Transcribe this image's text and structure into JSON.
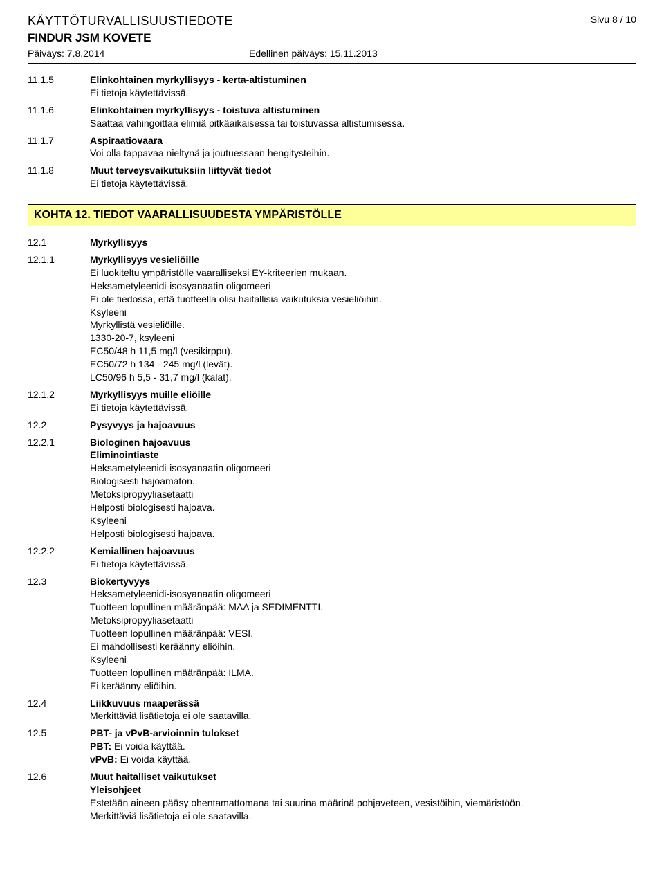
{
  "header": {
    "doc_type": "KÄYTTÖTURVALLISUUSTIEDOTE",
    "page": "Sivu  8 / 10",
    "product": "FINDUR JSM KOVETE",
    "date": "Päiväys: 7.8.2014",
    "prev_date": "Edellinen päiväys: 15.11.2013"
  },
  "sections11": [
    {
      "num": "11.1.5",
      "title": "Elinkohtainen myrkyllisyys - kerta-altistuminen",
      "lines": [
        "Ei tietoja käytettävissä."
      ]
    },
    {
      "num": "11.1.6",
      "title": "Elinkohtainen myrkyllisyys - toistuva altistuminen",
      "lines": [
        "Saattaa vahingoittaa elimiä pitkäaikaisessa tai toistuvassa altistumisessa."
      ]
    },
    {
      "num": "11.1.7",
      "title": "Aspiraatiovaara",
      "lines": [
        "Voi olla tappavaa nieltynä ja joutuessaan hengitysteihin."
      ]
    },
    {
      "num": "11.1.8",
      "title": "Muut terveysvaikutuksiin liittyvät tiedot",
      "lines": [
        "Ei tietoja käytettävissä."
      ]
    }
  ],
  "kohta12": {
    "header": "KOHTA 12. TIEDOT VAARALLISUUDESTA YMPÄRISTÖLLE"
  },
  "sections12": [
    {
      "num": "12.1",
      "title": "Myrkyllisyys",
      "lines": []
    },
    {
      "num": "12.1.1",
      "title": "Myrkyllisyys vesieliöille",
      "lines": [
        "Ei luokiteltu ympäristölle vaaralliseksi EY-kriteerien mukaan.",
        "Heksametyleenidi-isosyanaatin oligomeeri",
        "Ei ole tiedossa, että tuotteella olisi haitallisia vaikutuksia vesieliöihin.",
        "Ksyleeni",
        "Myrkyllistä vesieliöille.",
        "1330-20-7, ksyleeni",
        "EC50/48 h 11,5 mg/l (vesikirppu).",
        "EC50/72 h 134 - 245 mg/l (levät).",
        "LC50/96 h 5,5 - 31,7 mg/l (kalat)."
      ]
    },
    {
      "num": "12.1.2",
      "title": "Myrkyllisyys muille eliöille",
      "lines": [
        "Ei tietoja käytettävissä."
      ]
    },
    {
      "num": "12.2",
      "title": "Pysyvyys ja hajoavuus",
      "lines": []
    },
    {
      "num": "12.2.1",
      "title": "Biologinen hajoavuus",
      "subtitle": "Eliminointiaste",
      "lines": [
        "Heksametyleenidi-isosyanaatin oligomeeri",
        "Biologisesti hajoamaton.",
        "Metoksipropyyliasetaatti",
        "Helposti biologisesti hajoava.",
        "Ksyleeni",
        "Helposti biologisesti hajoava."
      ]
    },
    {
      "num": "12.2.2",
      "title": "Kemiallinen hajoavuus",
      "lines": [
        "Ei tietoja käytettävissä."
      ]
    },
    {
      "num": "12.3",
      "title": "Biokertyvyys",
      "lines": [
        "Heksametyleenidi-isosyanaatin oligomeeri",
        "Tuotteen lopullinen määränpää: MAA ja SEDIMENTTI.",
        "Metoksipropyyliasetaatti",
        "Tuotteen lopullinen määränpää: VESI.",
        "Ei mahdollisesti keräänny eliöihin.",
        "Ksyleeni",
        "Tuotteen lopullinen määränpää: ILMA.",
        "Ei keräänny eliöihin."
      ]
    },
    {
      "num": "12.4",
      "title": "Liikkuvuus maaperässä",
      "lines": [
        "Merkittäviä lisätietoja ei ole saatavilla."
      ]
    },
    {
      "num": "12.5",
      "title": "PBT- ja vPvB-arvioinnin tulokset",
      "lines": [],
      "kv": [
        {
          "k": "PBT:",
          "v": " Ei voida käyttää."
        },
        {
          "k": "vPvB:",
          "v": " Ei voida käyttää."
        }
      ]
    },
    {
      "num": "12.6",
      "title": "Muut haitalliset vaikutukset",
      "subtitle": "Yleisohjeet",
      "lines": [
        "Estetään aineen pääsy ohentamattomana tai suurina määrinä pohjaveteen, vesistöihin, viemäristöön.",
        "Merkittäviä lisätietoja ei ole saatavilla."
      ]
    }
  ]
}
